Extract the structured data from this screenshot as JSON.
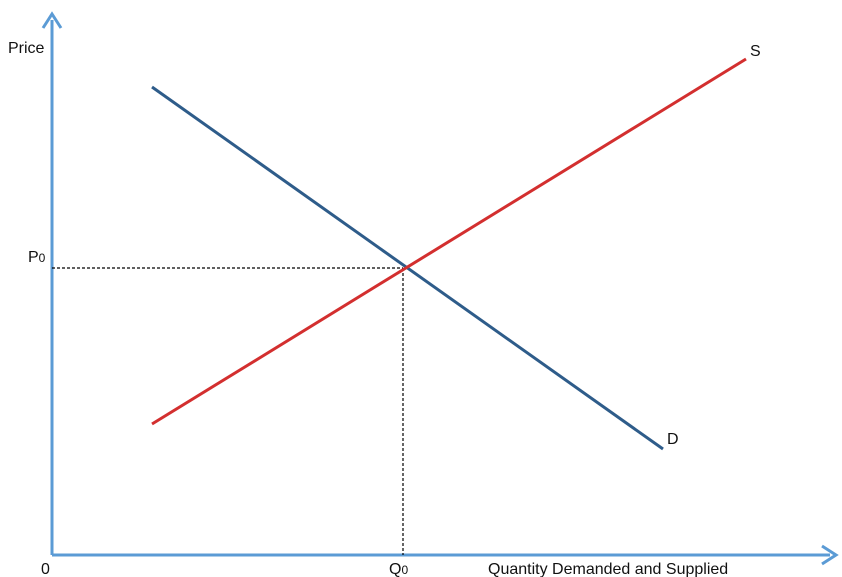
{
  "diagram": {
    "y_axis_label": "Price",
    "x_axis_label": "Quantity Demanded and Supplied",
    "origin_label": "0",
    "supply_label": "S",
    "demand_label": "D",
    "price_label": {
      "letter": "P",
      "subscript": "0"
    },
    "quantity_label": {
      "letter": "Q",
      "subscript": "0"
    },
    "colors": {
      "axis": "#5b9bd5",
      "supply": "#d32f2f",
      "demand": "#2e5c8a",
      "guide": "#000000"
    }
  }
}
